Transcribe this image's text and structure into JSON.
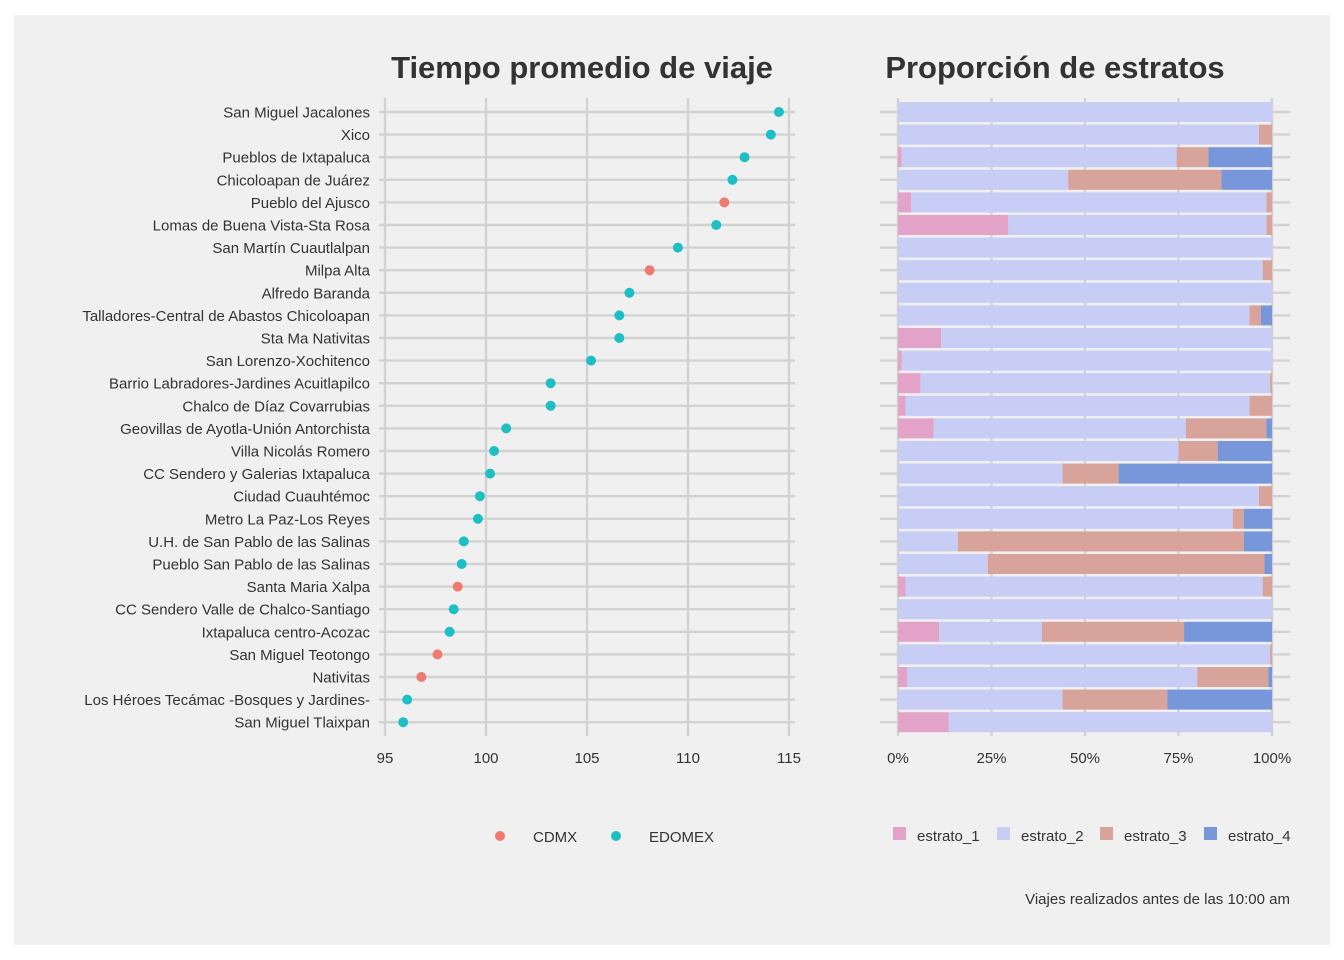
{
  "colors": {
    "background": "#f0f0f0",
    "grid": "#d2d2d2",
    "CDMX": "#f07a70",
    "EDOMEX": "#1dbfc4",
    "estrato_1": "#e3a3c8",
    "estrato_2": "#c8cdf5",
    "estrato_3": "#d8a39a",
    "estrato_4": "#7896da"
  },
  "chart_data": [
    {
      "type": "scatter",
      "title": "Tiempo promedio de viaje",
      "xlabel": "",
      "ylabel": "",
      "xlim": [
        95,
        115
      ],
      "xticks": [
        "95",
        "100",
        "105",
        "110",
        "115"
      ],
      "grid": true,
      "legend_position": "bottom",
      "legend": [
        "CDMX",
        "EDOMEX"
      ],
      "categories": [
        "San Miguel Jacalones",
        "Xico",
        "Pueblos de Ixtapaluca",
        "Chicoloapan de Juárez",
        "Pueblo del Ajusco",
        "Lomas de Buena Vista-Sta Rosa",
        "San Martín Cuautlalpan",
        "Milpa Alta",
        "Alfredo Baranda",
        "Talladores-Central de Abastos Chicoloapan",
        "Sta Ma Nativitas",
        "San Lorenzo-Xochitenco",
        "Barrio Labradores-Jardines Acuitlapilco",
        "Chalco de Díaz Covarrubias",
        "Geovillas de Ayotla-Unión Antorchista",
        "Villa Nicolás Romero",
        "CC Sendero y Galerias Ixtapaluca",
        "Ciudad Cuauhtémoc",
        "Metro La Paz-Los Reyes",
        "U.H. de San Pablo de las Salinas",
        "Pueblo San Pablo de las Salinas",
        "Santa Maria Xalpa",
        "CC Sendero Valle de Chalco-Santiago",
        "Ixtapaluca centro-Acozac",
        "San Miguel Teotongo",
        "Nativitas",
        "Los Héroes Tecámac -Bosques y Jardines-",
        "San Miguel Tlaixpan"
      ],
      "values": [
        114.5,
        114.1,
        112.8,
        112.2,
        111.8,
        111.4,
        109.5,
        108.1,
        107.1,
        106.6,
        106.6,
        105.2,
        103.2,
        103.2,
        101.0,
        100.4,
        100.2,
        99.7,
        99.6,
        98.9,
        98.8,
        98.6,
        98.4,
        98.2,
        97.6,
        96.8,
        96.1,
        95.9
      ],
      "group": [
        "EDOMEX",
        "EDOMEX",
        "EDOMEX",
        "EDOMEX",
        "CDMX",
        "EDOMEX",
        "EDOMEX",
        "CDMX",
        "EDOMEX",
        "EDOMEX",
        "EDOMEX",
        "EDOMEX",
        "EDOMEX",
        "EDOMEX",
        "EDOMEX",
        "EDOMEX",
        "EDOMEX",
        "EDOMEX",
        "EDOMEX",
        "EDOMEX",
        "EDOMEX",
        "CDMX",
        "EDOMEX",
        "EDOMEX",
        "CDMX",
        "CDMX",
        "EDOMEX",
        "EDOMEX"
      ]
    },
    {
      "type": "bar",
      "orientation": "horizontal",
      "stacked": "percent",
      "title": "Proporción de estratos",
      "xlabel": "",
      "ylabel": "",
      "xlim": [
        0,
        1
      ],
      "xticks": [
        "0%",
        "25%",
        "50%",
        "75%",
        "100%"
      ],
      "grid": true,
      "legend_position": "bottom",
      "series": [
        {
          "name": "estrato_1",
          "values": [
            0,
            0,
            0.01,
            0,
            0.035,
            0.295,
            0,
            0,
            0,
            0,
            0.115,
            0.01,
            0.06,
            0.02,
            0.095,
            0,
            0,
            0,
            0,
            0,
            0,
            0.02,
            0,
            0.11,
            0,
            0.025,
            0,
            0.135
          ]
        },
        {
          "name": "estrato_2",
          "values": [
            1.0,
            0.965,
            0.735,
            0.455,
            0.95,
            0.69,
            1.0,
            0.975,
            1.0,
            0.94,
            0.885,
            0.99,
            0.935,
            0.92,
            0.675,
            0.75,
            0.44,
            0.965,
            0.895,
            0.16,
            0.24,
            0.955,
            1.0,
            0.275,
            0.995,
            0.775,
            0.44,
            0.865
          ]
        },
        {
          "name": "estrato_3",
          "values": [
            0,
            0.035,
            0.085,
            0.41,
            0.015,
            0.015,
            0,
            0.025,
            0,
            0.03,
            0,
            0,
            0.005,
            0.06,
            0.215,
            0.105,
            0.15,
            0.035,
            0.03,
            0.765,
            0.74,
            0.025,
            0,
            0.38,
            0.005,
            0.19,
            0.28,
            0
          ]
        },
        {
          "name": "estrato_4",
          "values": [
            0,
            0,
            0.17,
            0.135,
            0,
            0,
            0,
            0,
            0,
            0.03,
            0,
            0,
            0,
            0,
            0.015,
            0.145,
            0.41,
            0,
            0.075,
            0.075,
            0.02,
            0,
            0,
            0.235,
            0,
            0.01,
            0.28,
            0
          ]
        }
      ]
    }
  ],
  "caption": "Viajes realizados antes de las 10:00 am"
}
